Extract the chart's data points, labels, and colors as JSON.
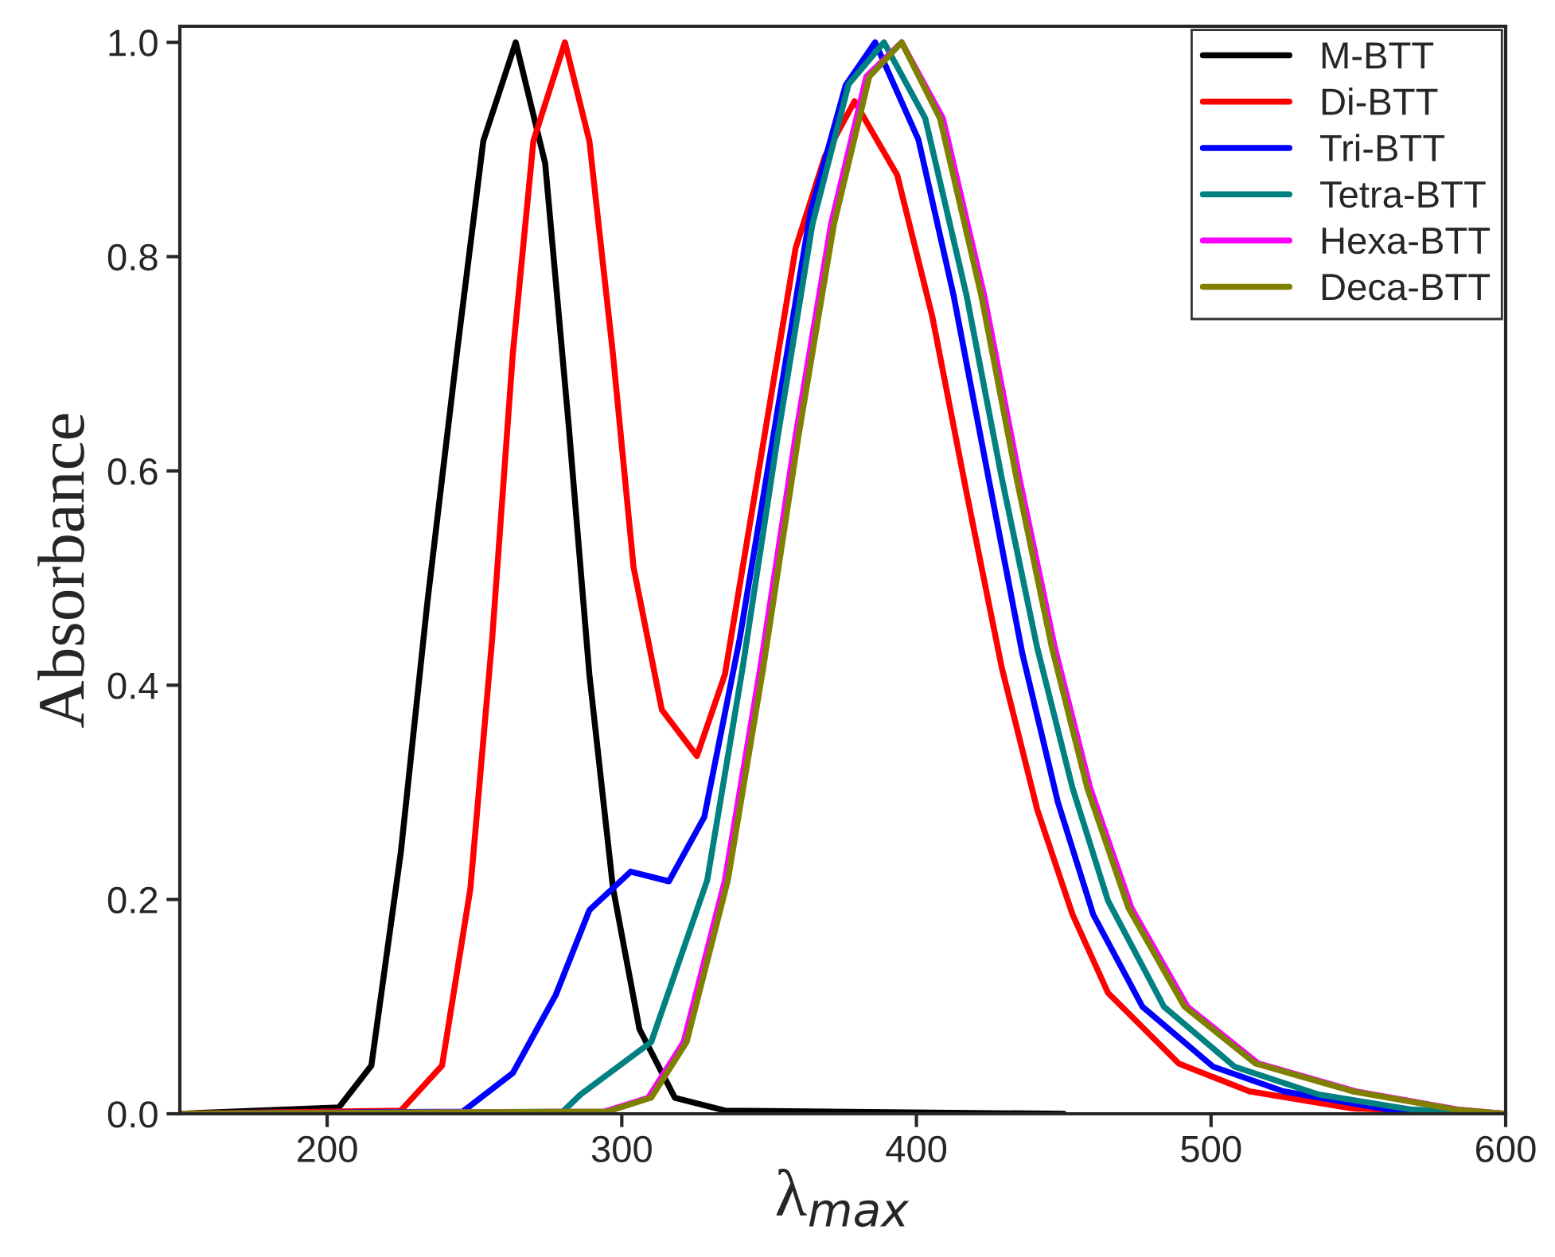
{
  "chart_data": {
    "type": "line",
    "xlabel": "λ$_{max}$",
    "ylabel": "Absorbance",
    "xlim": [
      150,
      600
    ],
    "ylim": [
      0,
      1.015
    ],
    "xticks": [
      200,
      300,
      400,
      500,
      600
    ],
    "yticks": [
      {
        "value": 0,
        "label": "0.0"
      },
      {
        "value": 0.2,
        "label": "0.2"
      },
      {
        "value": 0.4,
        "label": "0.4"
      },
      {
        "value": 0.6,
        "label": "0.6"
      },
      {
        "value": 0.8,
        "label": "0.8"
      },
      {
        "value": 1.0,
        "label": "1.0"
      }
    ],
    "grid": false,
    "legend": "top right",
    "marker": "none",
    "line_style": "solid",
    "series": [
      {
        "name": "M-BTT",
        "color": "#000000",
        "x": [
          150,
          204,
          215,
          225,
          234,
          244,
          253,
          264,
          274,
          282,
          289,
          297,
          306,
          318,
          335,
          450
        ],
        "values": [
          0,
          0.006,
          0.045,
          0.244,
          0.477,
          0.709,
          0.908,
          1.0,
          0.887,
          0.642,
          0.41,
          0.211,
          0.079,
          0.015,
          0.003,
          0
        ]
      },
      {
        "name": "Di-BTT",
        "color": "#ff0000",
        "x": [
          150,
          225,
          239,
          248.6,
          256,
          263,
          270,
          280.7,
          289,
          297,
          304,
          313.6,
          325.5,
          335,
          347,
          359,
          369,
          379,
          393.5,
          405.4,
          417,
          429,
          441,
          453,
          465,
          489,
          513,
          548,
          600
        ],
        "values": [
          0,
          0.003,
          0.045,
          0.21,
          0.443,
          0.709,
          0.908,
          1.0,
          0.908,
          0.709,
          0.51,
          0.377,
          0.334,
          0.41,
          0.609,
          0.808,
          0.894,
          0.945,
          0.876,
          0.744,
          0.58,
          0.416,
          0.284,
          0.186,
          0.113,
          0.047,
          0.021,
          0.005,
          0
        ]
      },
      {
        "name": "Tri-BTT",
        "color": "#0000ff",
        "x": [
          150,
          246,
          263,
          277.6,
          289,
          303,
          316,
          328,
          340,
          352,
          364,
          376,
          386,
          400.7,
          412.6,
          424.5,
          436,
          448,
          460,
          476.7,
          500.7,
          524.6,
          560,
          600
        ],
        "values": [
          0,
          0.002,
          0.038,
          0.111,
          0.19,
          0.226,
          0.217,
          0.277,
          0.443,
          0.642,
          0.841,
          0.96,
          1.0,
          0.909,
          0.764,
          0.593,
          0.429,
          0.291,
          0.186,
          0.1,
          0.044,
          0.021,
          0.004,
          0
        ]
      },
      {
        "name": "Tetra-BTT",
        "color": "#008080",
        "x": [
          150,
          280,
          286,
          310,
          329,
          341,
          353,
          364.7,
          377,
          389,
          403,
          417,
          429,
          441,
          453,
          465,
          484,
          508,
          536.5,
          568,
          600
        ],
        "values": [
          0,
          0.002,
          0.018,
          0.067,
          0.218,
          0.416,
          0.633,
          0.83,
          0.961,
          1.0,
          0.929,
          0.764,
          0.593,
          0.435,
          0.304,
          0.199,
          0.1,
          0.044,
          0.018,
          0.004,
          0
        ]
      },
      {
        "name": "Hexa-BTT",
        "color": "#ff00ff",
        "x": [
          150,
          294,
          309,
          321,
          335,
          347,
          359,
          371,
          383,
          395,
          409,
          423,
          435,
          447,
          459,
          473,
          492,
          516,
          549,
          584,
          600
        ],
        "values": [
          0,
          0.002,
          0.015,
          0.067,
          0.218,
          0.416,
          0.633,
          0.83,
          0.968,
          1.0,
          0.929,
          0.764,
          0.593,
          0.435,
          0.304,
          0.192,
          0.1,
          0.047,
          0.021,
          0.004,
          0
        ]
      },
      {
        "name": "Deca-BTT",
        "color": "#808000",
        "x": [
          150,
          295,
          310,
          322,
          336,
          348,
          360,
          372,
          384,
          395,
          408,
          422,
          434,
          446,
          458,
          472,
          491,
          515,
          548,
          583,
          600
        ],
        "values": [
          0,
          0.002,
          0.015,
          0.067,
          0.218,
          0.416,
          0.633,
          0.83,
          0.968,
          1.0,
          0.929,
          0.764,
          0.593,
          0.435,
          0.304,
          0.192,
          0.1,
          0.047,
          0.021,
          0.004,
          0
        ]
      }
    ]
  }
}
